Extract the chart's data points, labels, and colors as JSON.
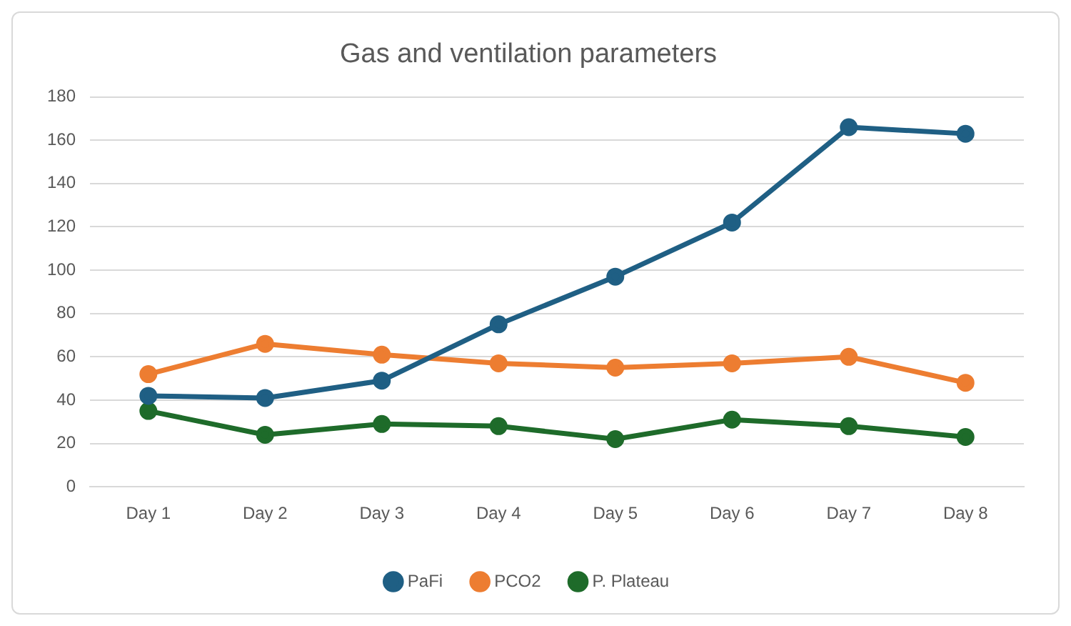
{
  "chart_data": {
    "type": "line",
    "title": "Gas and ventilation parameters",
    "categories": [
      "Day 1",
      "Day 2",
      "Day 3",
      "Day 4",
      "Day 5",
      "Day 6",
      "Day 7",
      "Day 8"
    ],
    "series": [
      {
        "name": "PaFi",
        "color": "#1f5f84",
        "values": [
          42,
          41,
          49,
          75,
          97,
          122,
          166,
          163
        ]
      },
      {
        "name": "PCO2",
        "color": "#ed7d31",
        "values": [
          52,
          66,
          61,
          57,
          55,
          57,
          60,
          48
        ]
      },
      {
        "name": "P. Plateau",
        "color": "#1e6b2a",
        "values": [
          35,
          24,
          29,
          28,
          22,
          31,
          28,
          23
        ]
      }
    ],
    "ylim": [
      0,
      180
    ],
    "yticks": [
      0,
      20,
      40,
      60,
      80,
      100,
      120,
      140,
      160,
      180
    ],
    "grid": "y",
    "legend": "bottom",
    "marker": "circle",
    "line_style": "solid"
  }
}
